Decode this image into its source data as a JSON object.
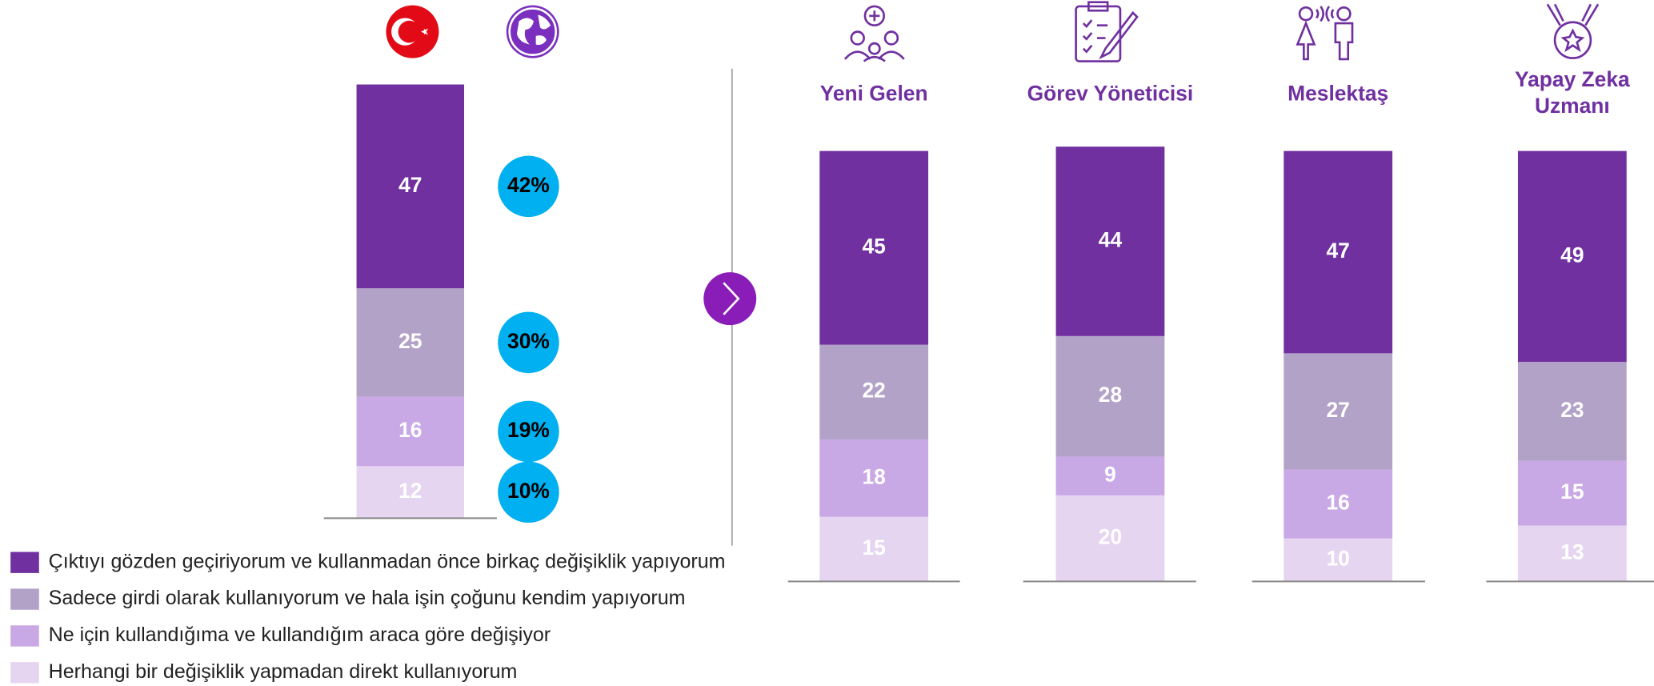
{
  "chart_data": [
    {
      "type": "stacked_bar",
      "categories": [
        null
      ],
      "series": [
        {
          "name": "Çıktıyı gözden geçiriyorum ve kullanmadan önce birkaç değişiklik yapıyorum",
          "color": "#7030a0",
          "values": [
            47
          ]
        },
        {
          "name": "Sadece girdi olarak kullanıyorum ve hala işin çoğunu kendim yapıyorum",
          "color": "#b3a2c8",
          "values": [
            25
          ]
        },
        {
          "name": "Ne için kullandığıma ve kullandığım araca göre değişiyor",
          "color": "#c9a8e6",
          "values": [
            16
          ]
        },
        {
          "name": "Herhangi bir değişiklik yapmadan direkt kullanıyorum",
          "color": "#e6d5f0",
          "values": [
            12
          ]
        }
      ]
    },
    {
      "type": "dots",
      "values": [
        42,
        30,
        19,
        10
      ],
      "value_labels": [
        "42%",
        "30%",
        "19%",
        "10%"
      ],
      "color": "#00b0f0"
    },
    {
      "type": "stacked_bar",
      "categories": [
        "Yeni Gelen",
        "Görev Yöneticisi",
        "Meslektaş",
        "Yapay Zeka Uzmanı"
      ],
      "series": [
        {
          "color": "#7030a0",
          "values": [
            45,
            44,
            47,
            49
          ]
        },
        {
          "color": "#b3a2c8",
          "values": [
            22,
            28,
            27,
            23
          ]
        },
        {
          "color": "#c9a8e6",
          "values": [
            18,
            9,
            16,
            15
          ]
        },
        {
          "color": "#e6d5f0",
          "values": [
            15,
            20,
            10,
            13
          ]
        }
      ]
    }
  ]
}
